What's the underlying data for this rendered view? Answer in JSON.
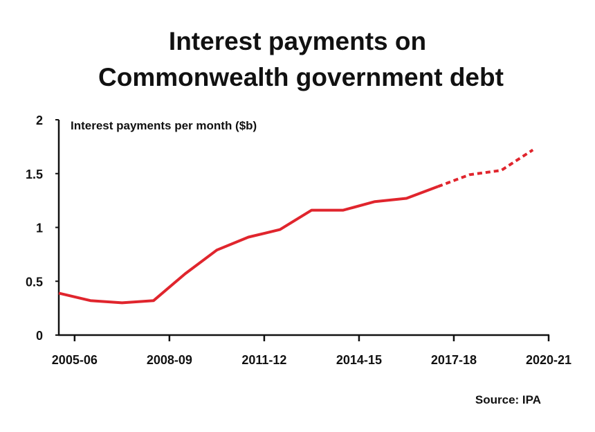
{
  "chart_data": {
    "type": "line",
    "title": [
      "Interest payments on",
      "Commonwealth government debt"
    ],
    "y_label": "Interest payments per month ($b)",
    "source": "Source: IPA",
    "series": [
      {
        "color": "#e0252d",
        "style": "solid",
        "x": [
          -0.5,
          0.5,
          1.5,
          2.5,
          3.5,
          4.5,
          5.5,
          6.5,
          7.5,
          8.5,
          9.5,
          10.5,
          11.5
        ],
        "values": [
          0.39,
          0.32,
          0.3,
          0.32,
          0.57,
          0.79,
          0.91,
          0.98,
          1.16,
          1.16,
          1.24,
          1.27,
          1.38
        ]
      },
      {
        "color": "#e0252d",
        "style": "dashed",
        "x": [
          11.5,
          12.5,
          13.5,
          14.5
        ],
        "values": [
          1.38,
          1.49,
          1.53,
          1.72
        ]
      }
    ],
    "xlim": [
      -0.5,
      15
    ],
    "xticks": [
      {
        "value": 0,
        "label": "2005-06"
      },
      {
        "value": 3,
        "label": "2008-09"
      },
      {
        "value": 6,
        "label": "2011-12"
      },
      {
        "value": 9,
        "label": "2014-15"
      },
      {
        "value": 12,
        "label": "2017-18"
      },
      {
        "value": 15,
        "label": "2020-21"
      }
    ],
    "ylim": [
      0,
      2
    ],
    "yticks": [
      0,
      0.5,
      1,
      1.5,
      2
    ],
    "grid": false
  }
}
